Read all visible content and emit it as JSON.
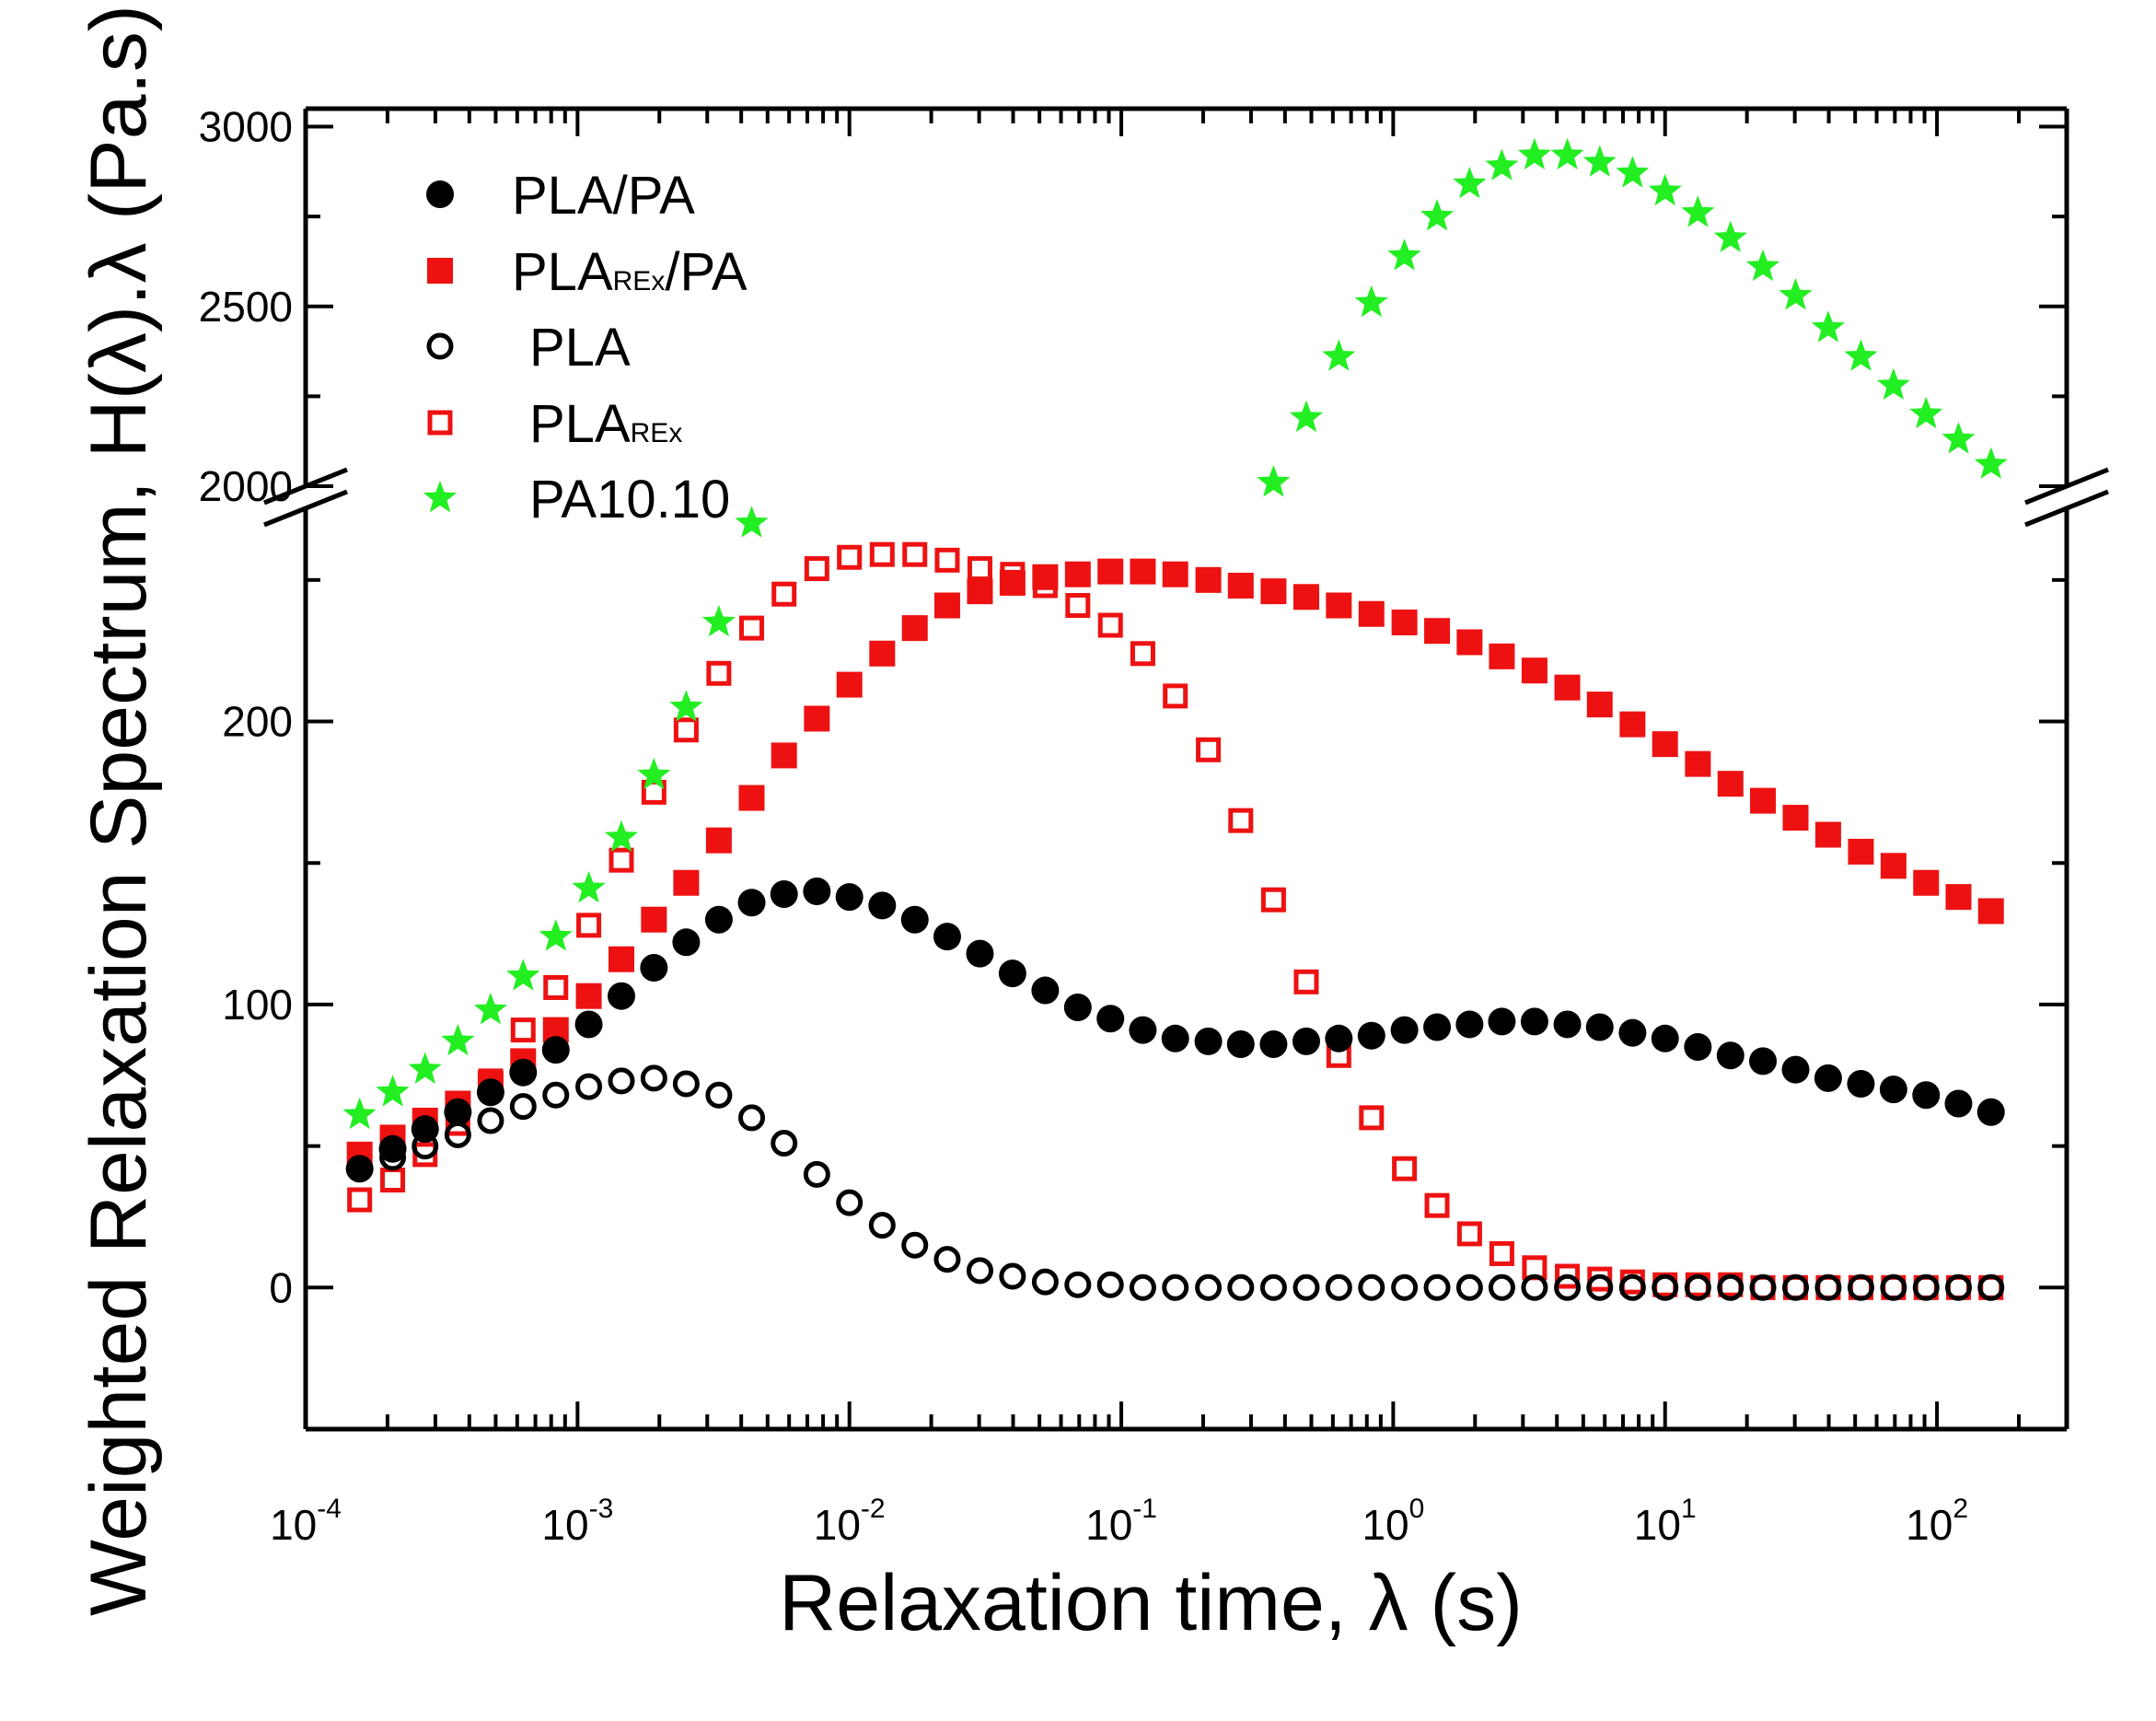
{
  "chart_data": {
    "type": "scatter",
    "xscale": "log",
    "xlim": [
      0.0001,
      300
    ],
    "ylim_lower": [
      -50,
      275
    ],
    "ylim_upper": [
      2000,
      3050
    ],
    "axis_break": {
      "lower_top": 275,
      "upper_bottom": 2000
    },
    "xlabel": "Relaxation time, λ (s)",
    "ylabel": "Weighted Relaxation Spectrum, H(λ).λ (Pa.s)",
    "x_ticks": [
      {
        "base": "10",
        "exp": "-4",
        "value": 0.0001
      },
      {
        "base": "10",
        "exp": "-3",
        "value": 0.001
      },
      {
        "base": "10",
        "exp": "-2",
        "value": 0.01
      },
      {
        "base": "10",
        "exp": "-1",
        "value": 0.1
      },
      {
        "base": "10",
        "exp": "0",
        "value": 1
      },
      {
        "base": "10",
        "exp": "1",
        "value": 10
      },
      {
        "base": "10",
        "exp": "2",
        "value": 100
      }
    ],
    "y_ticks_lower": [
      "0",
      "100",
      "200"
    ],
    "y_ticks_upper": [
      "2000",
      "2500",
      "3000"
    ],
    "legend": [
      {
        "name": "PLA/PA",
        "text": "PLA/PA",
        "marker": "filled-circle",
        "color": "#000000"
      },
      {
        "name": "PLA_REx/PA",
        "text": "PLA",
        "sub": "REx",
        "suffix": "/PA",
        "marker": "filled-square",
        "color": "#ee1111"
      },
      {
        "name": "PLA",
        "text": "PLA",
        "marker": "open-circle",
        "color": "#000000"
      },
      {
        "name": "PLA_REx",
        "text": "PLA",
        "sub": "REx",
        "suffix": "",
        "marker": "open-square",
        "color": "#ee1111"
      },
      {
        "name": "PA10.10",
        "text": "PA10.10",
        "marker": "star",
        "color": "#22ee22"
      }
    ],
    "x": [
      0.000158,
      0.000209,
      0.000275,
      0.000363,
      0.000479,
      0.000631,
      0.000832,
      0.0011,
      0.00145,
      0.00191,
      0.00251,
      0.00331,
      0.00437,
      0.00575,
      0.00759,
      0.01,
      0.0132,
      0.0174,
      0.0229,
      0.0302,
      0.0398,
      0.0525,
      0.0692,
      0.0912,
      0.12,
      0.158,
      0.209,
      0.275,
      0.363,
      0.479,
      0.631,
      0.832,
      1.1,
      1.45,
      1.91,
      2.51,
      3.31,
      4.37,
      5.75,
      7.59,
      10.0,
      13.2,
      17.4,
      22.9,
      30.2,
      39.8,
      52.5,
      69.2,
      91.2,
      120,
      158
    ],
    "series": [
      {
        "name": "PLA/PA",
        "values": [
          42,
          49,
          56,
          62,
          69,
          76,
          84,
          93,
          103,
          113,
          122,
          130,
          136,
          139,
          140,
          138,
          135,
          130,
          124,
          118,
          111,
          105,
          99,
          95,
          91,
          88,
          87,
          86,
          86,
          87,
          88,
          89,
          91,
          92,
          93,
          94,
          94,
          93,
          92,
          90,
          88,
          85,
          82,
          80,
          77,
          74,
          72,
          70,
          68,
          65,
          62
        ]
      },
      {
        "name": "PLA_REx/PA",
        "values": [
          47,
          53,
          59,
          65,
          72,
          80,
          91,
          103,
          116,
          130,
          143,
          158,
          173,
          188,
          201,
          213,
          224,
          233,
          241,
          246,
          249,
          251,
          252,
          253,
          253,
          252,
          250,
          248,
          246,
          244,
          241,
          238,
          235,
          232,
          228,
          223,
          218,
          212,
          206,
          199,
          192,
          185,
          178,
          172,
          166,
          160,
          154,
          149,
          143,
          138,
          133
        ]
      },
      {
        "name": "PLA",
        "values": [
          42,
          46,
          50,
          54,
          59,
          64,
          68,
          71,
          73,
          74,
          72,
          68,
          60,
          51,
          40,
          30,
          22,
          15,
          10,
          6,
          4,
          2,
          1,
          1,
          0,
          0,
          0,
          0,
          0,
          0,
          0,
          0,
          0,
          0,
          0,
          0,
          0,
          0,
          0,
          0,
          0,
          0,
          0,
          0,
          0,
          0,
          0,
          0,
          0,
          0,
          0
        ]
      },
      {
        "name": "PLA_REx",
        "values": [
          31,
          38,
          47,
          58,
          73,
          91,
          106,
          128,
          151,
          175,
          197,
          217,
          233,
          245,
          254,
          258,
          259,
          259,
          257,
          254,
          252,
          248,
          241,
          234,
          224,
          209,
          190,
          165,
          137,
          108,
          82,
          60,
          42,
          29,
          19,
          12,
          7,
          4,
          3,
          2,
          1,
          1,
          1,
          0,
          0,
          0,
          0,
          0,
          0,
          0,
          0
        ]
      },
      {
        "name": "PA10.10",
        "values": [
          61,
          69,
          77,
          87,
          98,
          110,
          124,
          141,
          159,
          181,
          205,
          235,
          270,
          null,
          null,
          null,
          null,
          null,
          null,
          null,
          null,
          null,
          null,
          null,
          null,
          null,
          null,
          null,
          2010,
          2190,
          2360,
          2510,
          2640,
          2750,
          2840,
          2890,
          2920,
          2920,
          2900,
          2870,
          2820,
          2760,
          2690,
          2610,
          2530,
          2440,
          2360,
          2280,
          2200,
          2130,
          2060
        ]
      }
    ]
  }
}
